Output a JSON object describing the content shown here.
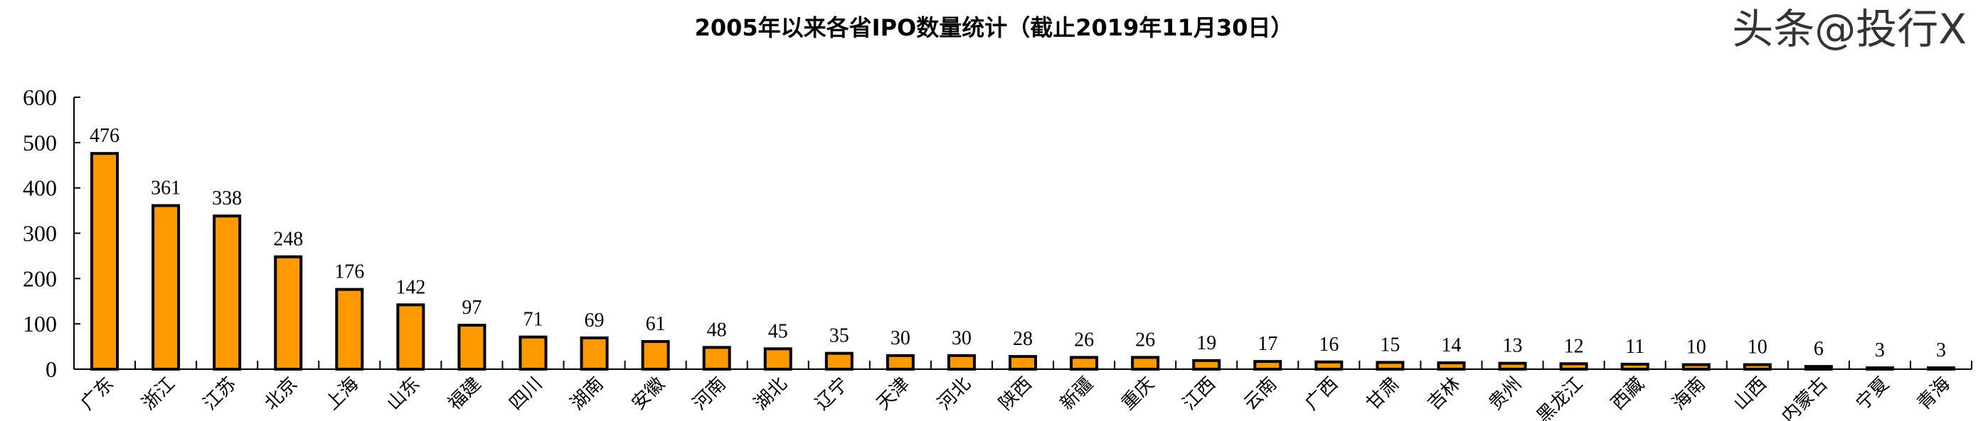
{
  "chart_data": {
    "type": "bar",
    "title": "2005年以来各省IPO数量统计（截止2019年11月30日）",
    "categories": [
      "广东",
      "浙江",
      "江苏",
      "北京",
      "上海",
      "山东",
      "福建",
      "四川",
      "湖南",
      "安徽",
      "河南",
      "湖北",
      "辽宁",
      "天津",
      "河北",
      "陕西",
      "新疆",
      "重庆",
      "江西",
      "云南",
      "广西",
      "甘肃",
      "吉林",
      "贵州",
      "黑龙江",
      "西藏",
      "海南",
      "山西",
      "内蒙古",
      "宁夏",
      "青海"
    ],
    "values": [
      476,
      361,
      338,
      248,
      176,
      142,
      97,
      71,
      69,
      61,
      48,
      45,
      35,
      30,
      30,
      28,
      26,
      26,
      19,
      17,
      16,
      15,
      14,
      13,
      12,
      11,
      10,
      10,
      6,
      3,
      3
    ],
    "ylim": [
      0,
      600
    ],
    "yticks": [
      0,
      100,
      200,
      300,
      400,
      500,
      600
    ],
    "xlabel": "",
    "ylabel": "",
    "grid": false,
    "bar_color": "#FF9900",
    "bar_edge_color": "#000000"
  },
  "watermark": "头条@投行X"
}
